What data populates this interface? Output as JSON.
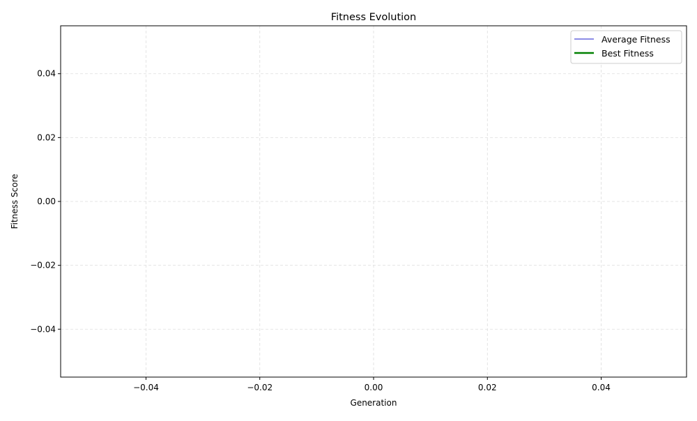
{
  "chart_data": {
    "type": "line",
    "title": "Fitness Evolution",
    "xlabel": "Generation",
    "ylabel": "Fitness Score",
    "xlim": [
      -0.055,
      0.055
    ],
    "ylim": [
      -0.055,
      0.055
    ],
    "x_ticks": [
      -0.04,
      -0.02,
      0.0,
      0.02,
      0.04
    ],
    "y_ticks": [
      -0.04,
      -0.02,
      0.0,
      0.02,
      0.04
    ],
    "x_tick_labels": [
      "−0.04",
      "−0.02",
      "0.00",
      "0.02",
      "0.04"
    ],
    "y_tick_labels": [
      "−0.04",
      "−0.02",
      "0.00",
      "0.02",
      "0.04"
    ],
    "grid": true,
    "legend_position": "top-right",
    "x": [],
    "series": [
      {
        "name": "Average Fitness",
        "color": "#6666dd",
        "values": []
      },
      {
        "name": "Best Fitness",
        "color": "#008000",
        "values": []
      }
    ]
  }
}
